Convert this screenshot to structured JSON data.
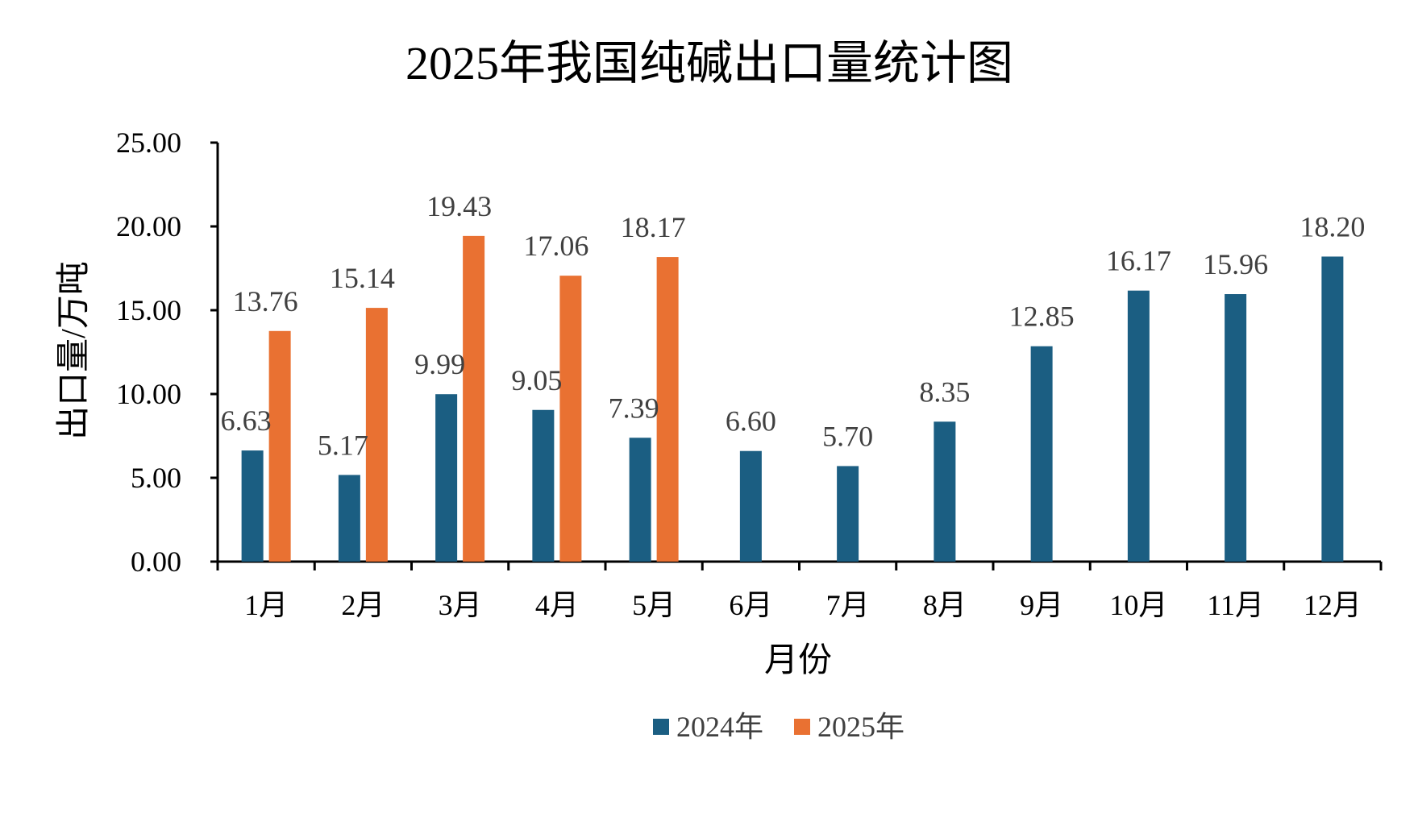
{
  "chart_data": {
    "type": "bar",
    "title": "2025年我国纯碱出口量统计图",
    "xlabel": "月份",
    "ylabel": "出口量/万吨",
    "categories": [
      "1月",
      "2月",
      "3月",
      "4月",
      "5月",
      "6月",
      "7月",
      "8月",
      "9月",
      "10月",
      "11月",
      "12月"
    ],
    "series": [
      {
        "name": "2024年",
        "color": "#1b5e82",
        "values": [
          6.63,
          5.17,
          9.99,
          9.05,
          7.39,
          6.6,
          5.7,
          8.35,
          12.85,
          16.17,
          15.96,
          18.2
        ],
        "labels": [
          "6.63",
          "5.17",
          "9.99",
          "9.05",
          "7.39",
          "6.60",
          "5.70",
          "8.35",
          "12.85",
          "16.17",
          "15.96",
          "18.20"
        ]
      },
      {
        "name": "2025年",
        "color": "#e97132",
        "values": [
          13.76,
          15.14,
          19.43,
          17.06,
          18.17,
          null,
          null,
          null,
          null,
          null,
          null,
          null
        ],
        "labels": [
          "13.76",
          "15.14",
          "19.43",
          "17.06",
          "18.17",
          null,
          null,
          null,
          null,
          null,
          null,
          null
        ]
      }
    ],
    "ylim": [
      0,
      25
    ],
    "yticks": [
      "0.00",
      "5.00",
      "10.00",
      "15.00",
      "20.00",
      "25.00"
    ],
    "grid": false,
    "legend": "bottom-center"
  }
}
